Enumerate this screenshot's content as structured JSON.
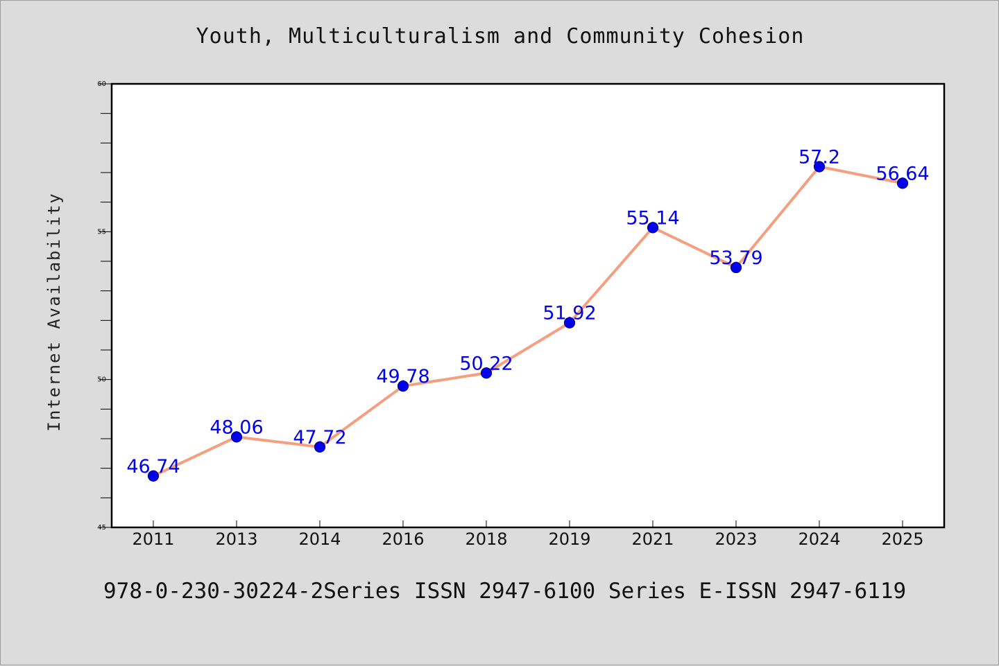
{
  "title": "Youth, Multiculturalism and Community Cohesion",
  "footer": "978-0-230-30224-2Series ISSN 2947-6100 Series E-ISSN 2947-6119",
  "colors": {
    "background": "#dcdcdc",
    "plot_background": "#ffffff",
    "line": "#f4a080",
    "marker_fill": "#0000ee",
    "marker_edge": "#000080",
    "data_label": "#0000ee"
  },
  "chart_data": {
    "type": "line",
    "title": "Youth, Multiculturalism and Community Cohesion",
    "xlabel": "",
    "ylabel": "Internet Availability",
    "categories": [
      "2011",
      "2013",
      "2014",
      "2016",
      "2018",
      "2019",
      "2021",
      "2023",
      "2024",
      "2025"
    ],
    "series": [
      {
        "values": [
          46.74,
          48.06,
          47.72,
          49.78,
          50.22,
          51.92,
          55.14,
          53.79,
          57.2,
          56.64
        ],
        "labels": [
          "46.74",
          "48.06",
          "47.72",
          "49.78",
          "50.22",
          "51.92",
          "55.14",
          "53.79",
          "57.2",
          "56.64"
        ]
      }
    ],
    "ylim": [
      45,
      60
    ],
    "yticks": [
      45,
      50,
      55,
      60
    ],
    "y_minor_step": 1,
    "grid": false,
    "legend": "none"
  }
}
